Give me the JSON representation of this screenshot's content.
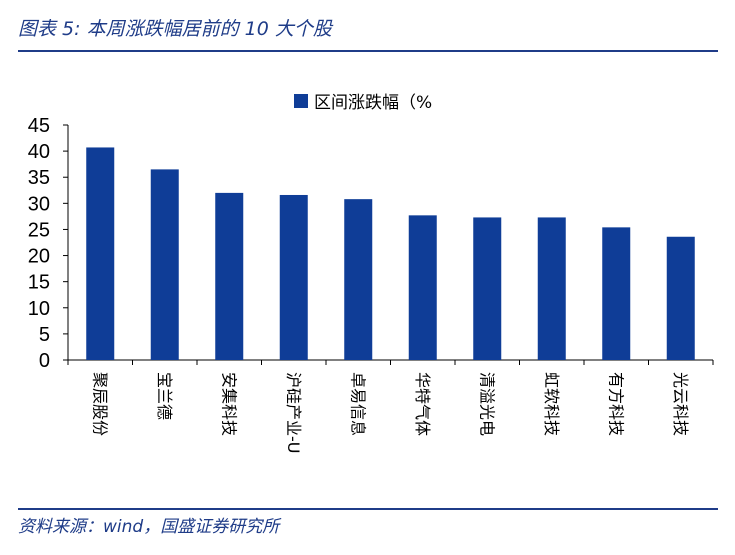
{
  "figure_title": "图表 5:  本周涨跌幅居前的 10 大个股",
  "source": "资料来源：wind，国盛证券研究所",
  "colors": {
    "bar": "#0f3d97",
    "rule": "#1f3c88",
    "axis": "#000000"
  },
  "chart_data": {
    "type": "bar",
    "categories": [
      "聚辰股份",
      "宝兰德",
      "安集科技",
      "沪硅产业-U",
      "卓易信息",
      "华特气体",
      "清溢光电",
      "虹软科技",
      "有方科技",
      "光云科技"
    ],
    "series": [
      {
        "name": "区间涨跌幅（%",
        "values": [
          40.7,
          36.5,
          32.0,
          31.6,
          30.8,
          27.7,
          27.3,
          27.3,
          25.4,
          23.6
        ]
      }
    ],
    "ylim": [
      0,
      45
    ],
    "yticks": [
      0,
      5,
      10,
      15,
      20,
      25,
      30,
      35,
      40,
      45
    ],
    "grid": false,
    "legend_position": "top-center"
  }
}
